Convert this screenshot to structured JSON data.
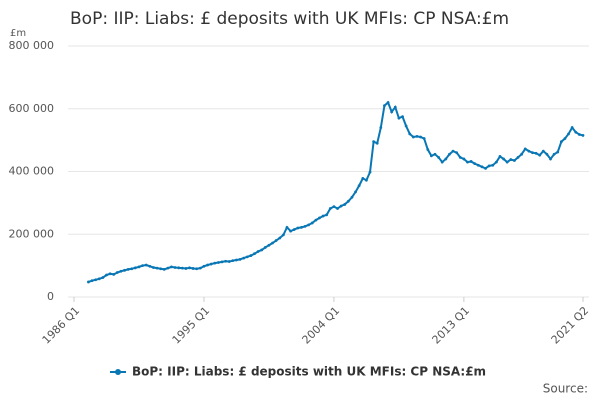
{
  "chart_data": {
    "type": "line",
    "title": "BoP: IIP: Liabs: £ deposits with UK MFIs: CP NSA:£m",
    "y_unit": "£m",
    "source": "Source:",
    "categories": [
      "1986 Q1",
      null,
      null,
      null,
      null,
      null,
      null,
      null,
      null,
      null,
      null,
      null,
      null,
      null,
      null,
      null,
      null,
      null,
      null,
      null,
      null,
      null,
      null,
      null,
      null,
      null,
      null,
      null,
      null,
      null,
      null,
      null,
      null,
      null,
      null,
      null,
      "1995 Q1",
      null,
      null,
      null,
      null,
      null,
      null,
      null,
      null,
      null,
      null,
      null,
      null,
      null,
      null,
      null,
      null,
      null,
      null,
      null,
      null,
      null,
      null,
      null,
      null,
      null,
      null,
      null,
      null,
      null,
      null,
      null,
      null,
      null,
      null,
      null,
      "2004 Q1",
      null,
      null,
      null,
      null,
      null,
      null,
      null,
      null,
      null,
      null,
      null,
      null,
      null,
      null,
      null,
      null,
      null,
      null,
      null,
      null,
      null,
      null,
      null,
      null,
      null,
      null,
      null,
      null,
      null,
      null,
      null,
      null,
      null,
      null,
      null,
      "2013 Q1",
      null,
      null,
      null,
      null,
      null,
      null,
      null,
      null,
      null,
      null,
      null,
      null,
      null,
      null,
      null,
      null,
      null,
      null,
      null,
      null,
      null,
      null,
      null,
      null,
      null,
      null,
      null,
      null,
      null,
      null,
      null,
      null,
      "2021 Q2"
    ],
    "series": [
      {
        "name": "BoP: IIP: Liabs: £ deposits with UK MFIs: CP NSA:£m",
        "color": "#0a77b5",
        "values": [
          null,
          null,
          null,
          null,
          48000,
          52000,
          55000,
          58000,
          62000,
          70000,
          74000,
          72000,
          78000,
          82000,
          85000,
          88000,
          90000,
          93000,
          96000,
          100000,
          102000,
          98000,
          94000,
          92000,
          90000,
          88000,
          92000,
          96000,
          94000,
          93000,
          92000,
          91000,
          93000,
          91000,
          90000,
          92000,
          98000,
          102000,
          105000,
          108000,
          110000,
          112000,
          114000,
          113000,
          116000,
          118000,
          120000,
          124000,
          128000,
          132000,
          138000,
          145000,
          150000,
          158000,
          165000,
          172000,
          180000,
          188000,
          198000,
          222000,
          210000,
          215000,
          220000,
          222000,
          225000,
          230000,
          236000,
          245000,
          252000,
          258000,
          262000,
          282000,
          288000,
          282000,
          290000,
          295000,
          305000,
          318000,
          335000,
          355000,
          378000,
          372000,
          398000,
          495000,
          490000,
          540000,
          610000,
          620000,
          590000,
          605000,
          570000,
          575000,
          545000,
          520000,
          510000,
          512000,
          510000,
          505000,
          470000,
          450000,
          455000,
          445000,
          430000,
          440000,
          455000,
          465000,
          460000,
          445000,
          440000,
          430000,
          432000,
          425000,
          420000,
          415000,
          410000,
          418000,
          420000,
          430000,
          448000,
          440000,
          430000,
          438000,
          435000,
          445000,
          455000,
          472000,
          465000,
          460000,
          458000,
          452000,
          465000,
          455000,
          440000,
          455000,
          462000,
          495000,
          505000,
          520000,
          540000,
          525000,
          518000,
          515000
        ]
      }
    ],
    "ylim": [
      0,
      800000
    ],
    "yticks": [
      0,
      {
        "value": 200000,
        "label": "200 000"
      },
      {
        "value": 400000,
        "label": "400 000"
      },
      {
        "value": 600000,
        "label": "600 000"
      },
      {
        "value": 800000,
        "label": "800 000"
      }
    ],
    "grid": true
  }
}
